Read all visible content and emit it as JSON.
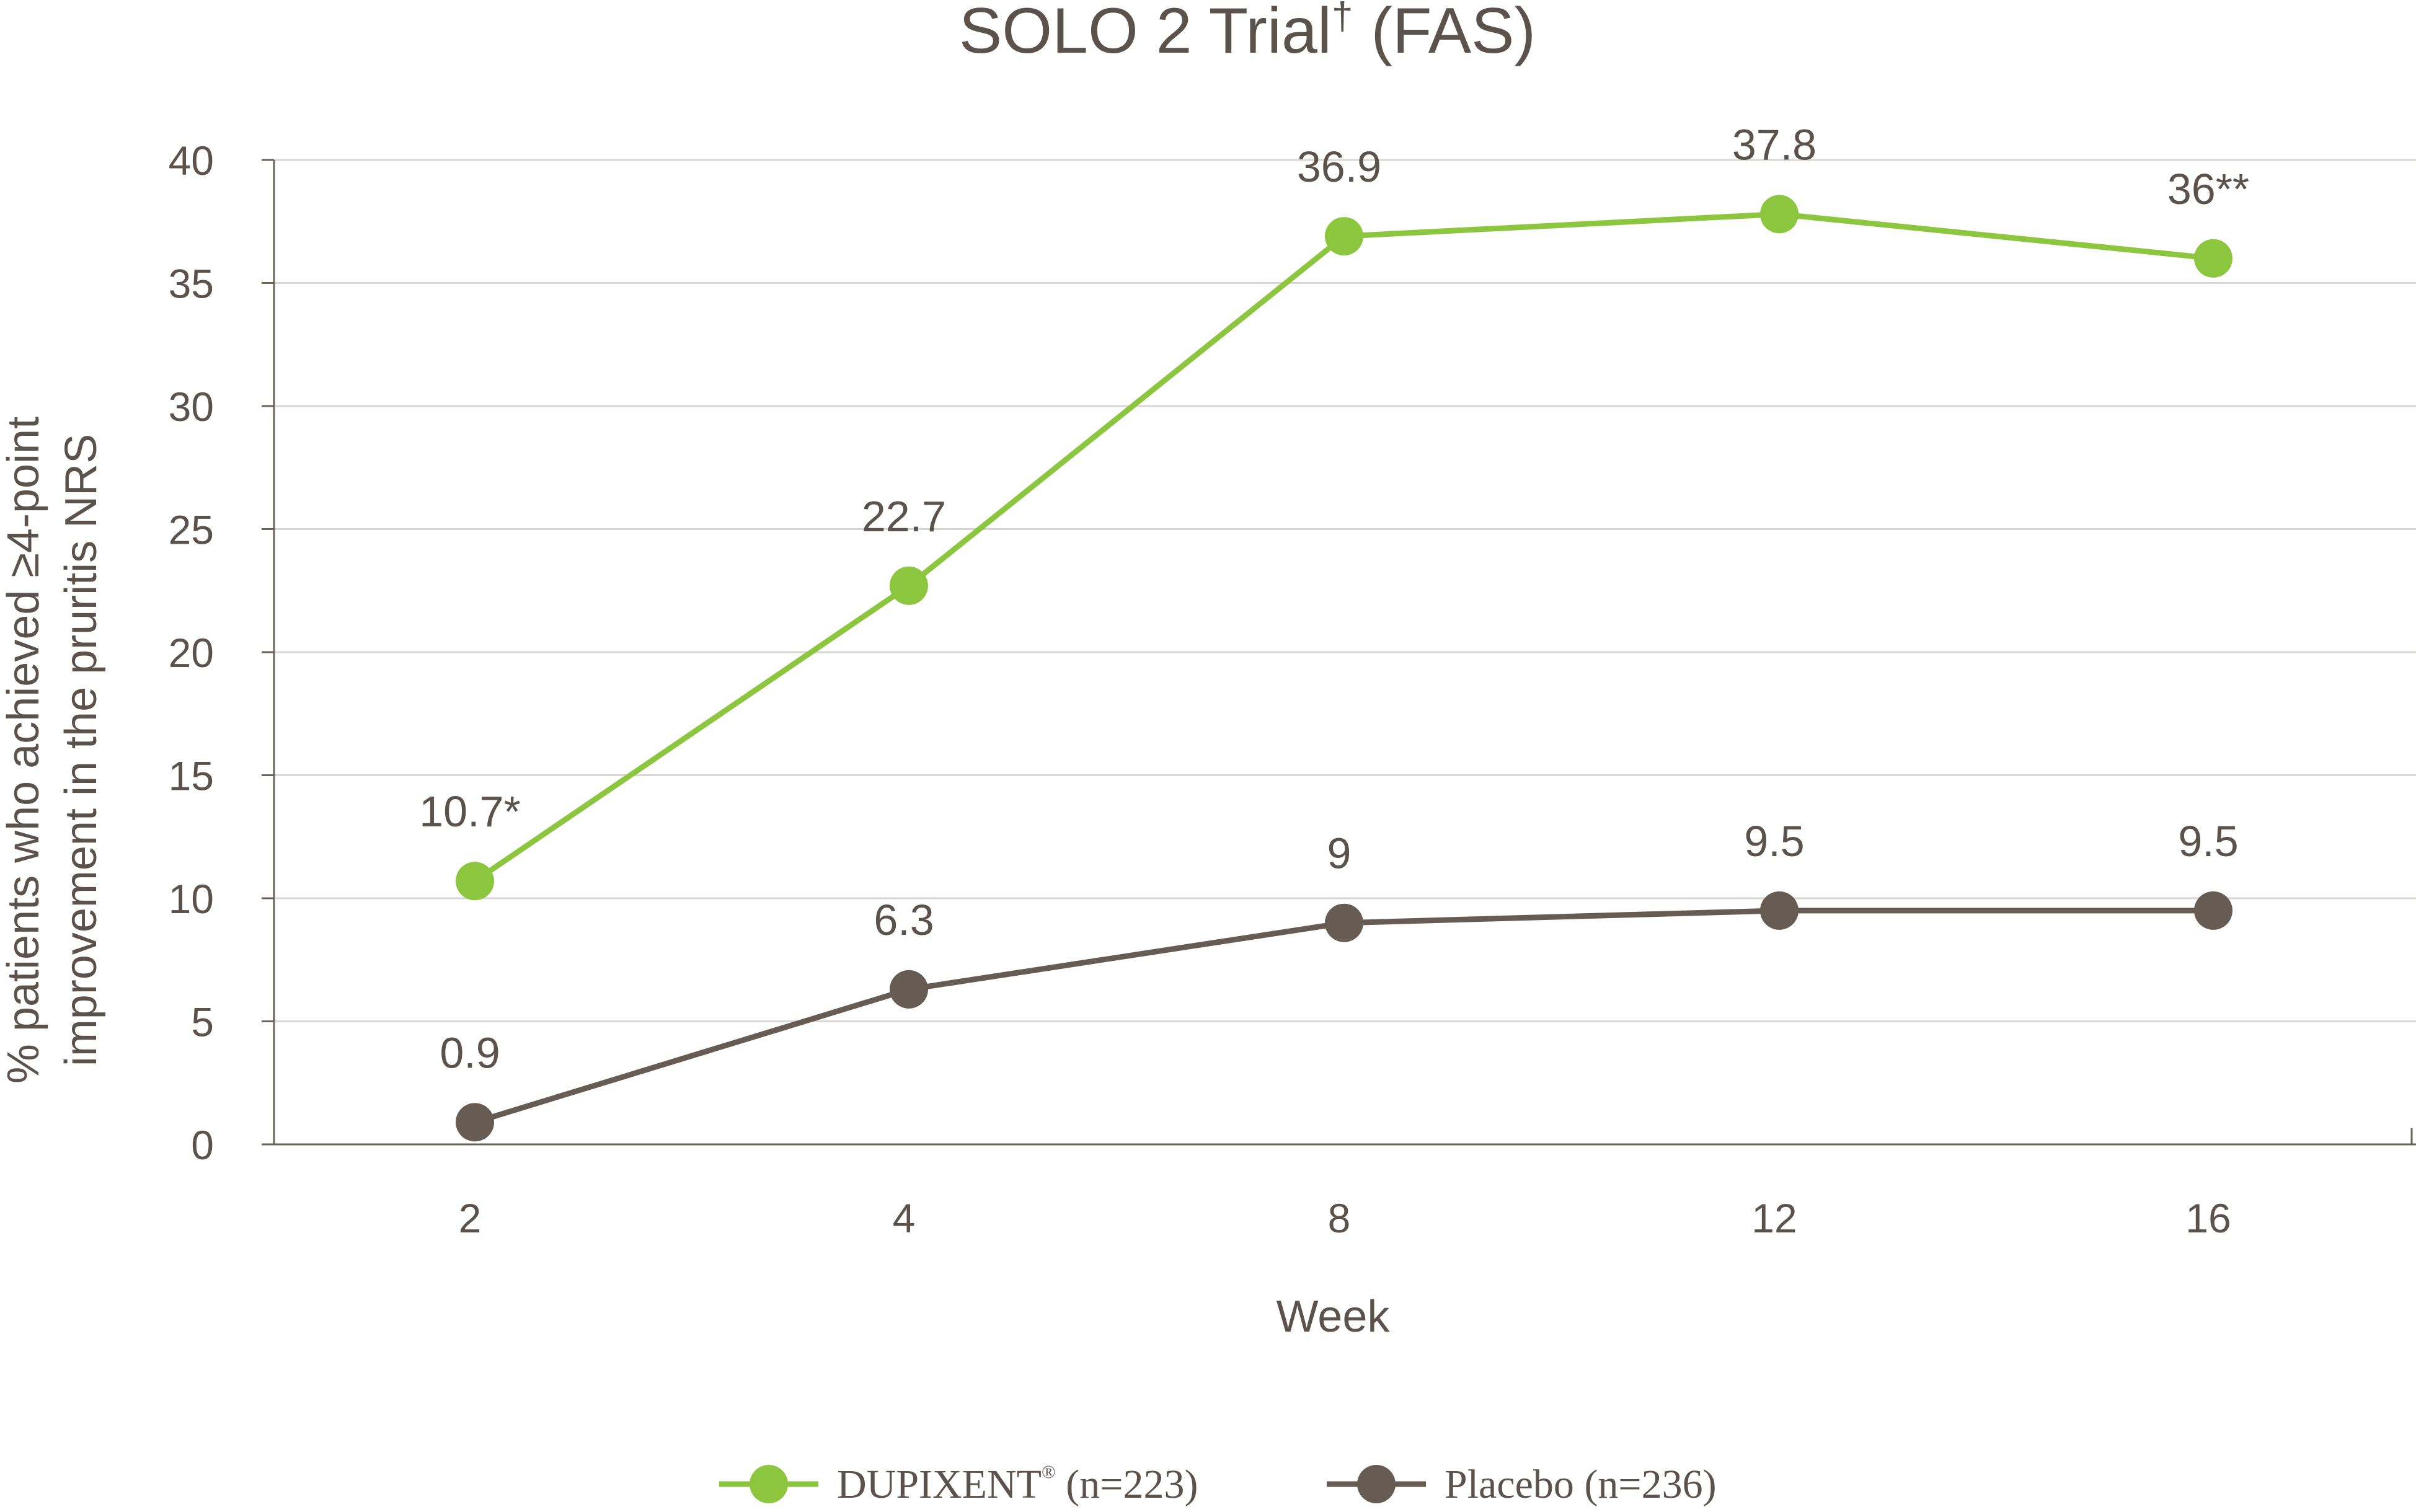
{
  "chart_data": {
    "type": "line",
    "title": "SOLO 2 Trial",
    "title_sup": "†",
    "title_suffix": " (FAS)",
    "xlabel": "Week",
    "ylabel_line1": "% patients who achieved ≥4-point",
    "ylabel_line2": "improvement in the pruritis NRS",
    "categories": [
      "2",
      "4",
      "8",
      "12",
      "16"
    ],
    "ylim": [
      0,
      40
    ],
    "yticks": [
      0,
      5,
      10,
      15,
      20,
      25,
      30,
      35,
      40
    ],
    "grid": true,
    "legend_position": "bottom-center",
    "series": [
      {
        "name": "DUPIXENT",
        "name_sup": "®",
        "name_suffix": " (n=223)",
        "color": "#8cc63f",
        "values": [
          10.7,
          22.7,
          36.9,
          37.8,
          36
        ],
        "labels": [
          "10.7*",
          "22.7",
          "36.9",
          "37.8",
          "36**"
        ]
      },
      {
        "name": "Placebo",
        "name_sup": "",
        "name_suffix": " (n=236)",
        "color": "#675c54",
        "values": [
          0.9,
          6.3,
          9,
          9.5,
          9.5
        ],
        "labels": [
          "0.9",
          "6.3",
          "9",
          "9.5",
          "9.5"
        ]
      }
    ]
  }
}
